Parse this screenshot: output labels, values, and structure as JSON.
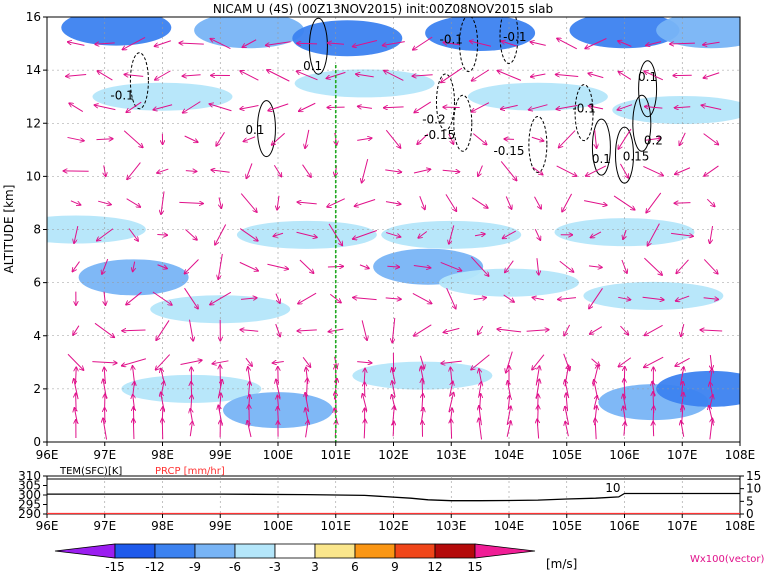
{
  "chart_data": [
    {
      "type": "heatmap",
      "title": "NICAM U (4S) (00Z13NOV2015) init:00Z08NOV2015 slab",
      "ylabel": "ALTITUDE [km]",
      "x_ticks": [
        "96E",
        "97E",
        "98E",
        "99E",
        "100E",
        "101E",
        "102E",
        "103E",
        "104E",
        "105E",
        "106E",
        "107E",
        "108E"
      ],
      "y_ticks": [
        "0",
        "2",
        "4",
        "6",
        "8",
        "10",
        "12",
        "14",
        "16"
      ],
      "xlim": [
        96,
        108
      ],
      "ylim": [
        0,
        16
      ],
      "grid": true,
      "marker_line_lon": 101,
      "shade_bands": [
        {
          "lon": 97.2,
          "z": 15.6,
          "level": -9
        },
        {
          "lon": 99.5,
          "z": 15.5,
          "level": -6
        },
        {
          "lon": 101.2,
          "z": 15.2,
          "level": -9
        },
        {
          "lon": 103.5,
          "z": 15.4,
          "level": -9
        },
        {
          "lon": 106.0,
          "z": 15.5,
          "level": -9
        },
        {
          "lon": 107.5,
          "z": 15.5,
          "level": -6
        },
        {
          "lon": 98.0,
          "z": 13.0,
          "level": -3
        },
        {
          "lon": 101.5,
          "z": 13.5,
          "level": -3
        },
        {
          "lon": 104.5,
          "z": 13.0,
          "level": -3
        },
        {
          "lon": 107.0,
          "z": 12.5,
          "level": -3
        },
        {
          "lon": 96.5,
          "z": 8.0,
          "level": -3
        },
        {
          "lon": 100.5,
          "z": 7.8,
          "level": -3
        },
        {
          "lon": 103.0,
          "z": 7.8,
          "level": -3
        },
        {
          "lon": 106.0,
          "z": 7.9,
          "level": -3
        },
        {
          "lon": 97.5,
          "z": 6.2,
          "level": -6
        },
        {
          "lon": 102.6,
          "z": 6.6,
          "level": -6
        },
        {
          "lon": 104.0,
          "z": 6.0,
          "level": -3
        },
        {
          "lon": 99.0,
          "z": 5.0,
          "level": -3
        },
        {
          "lon": 106.5,
          "z": 5.5,
          "level": -3
        },
        {
          "lon": 98.5,
          "z": 2.0,
          "level": -3
        },
        {
          "lon": 102.5,
          "z": 2.5,
          "level": -3
        },
        {
          "lon": 106.5,
          "z": 1.5,
          "level": -6
        },
        {
          "lon": 107.5,
          "z": 2.0,
          "level": -9
        },
        {
          "lon": 100.0,
          "z": 1.2,
          "level": -6
        }
      ],
      "contours": [
        {
          "lon": 97.6,
          "z": 13.6,
          "value": "-0.1",
          "style": "dashed"
        },
        {
          "lon": 99.8,
          "z": 11.8,
          "value": "0.1",
          "style": "solid"
        },
        {
          "lon": 100.7,
          "z": 14.9,
          "value": "0.1",
          "style": "solid"
        },
        {
          "lon": 103.3,
          "z": 15.0,
          "value": "-0.1",
          "style": "dashed"
        },
        {
          "lon": 104.0,
          "z": 15.3,
          "value": "-0.1",
          "style": "dashed"
        },
        {
          "lon": 102.9,
          "z": 12.8,
          "value": "-0.2",
          "style": "dashed"
        },
        {
          "lon": 103.2,
          "z": 12.0,
          "value": "-0.15",
          "style": "dashed"
        },
        {
          "lon": 104.5,
          "z": 11.2,
          "value": "-0.15",
          "style": "dashed"
        },
        {
          "lon": 105.3,
          "z": 12.4,
          "value": "-0.1",
          "style": "dashed"
        },
        {
          "lon": 106.4,
          "z": 13.3,
          "value": "0.1",
          "style": "solid"
        },
        {
          "lon": 106.3,
          "z": 12.0,
          "value": "0.2",
          "style": "solid"
        },
        {
          "lon": 106.0,
          "z": 10.8,
          "value": "0.15",
          "style": "solid"
        },
        {
          "lon": 105.6,
          "z": 11.1,
          "value": "0.1",
          "style": "solid"
        }
      ],
      "contour_labels": [
        {
          "text": "-0.1",
          "lon": 97.3,
          "z": 12.9
        },
        {
          "text": "0.1",
          "lon": 99.6,
          "z": 11.6
        },
        {
          "text": "0.1",
          "lon": 100.6,
          "z": 14.0
        },
        {
          "text": "-0.1",
          "lon": 103.0,
          "z": 15.0
        },
        {
          "text": "-0.1",
          "lon": 104.1,
          "z": 15.1
        },
        {
          "text": "-0.2",
          "lon": 102.7,
          "z": 12.0
        },
        {
          "text": "-0.15",
          "lon": 102.8,
          "z": 11.4
        },
        {
          "text": "-0.15",
          "lon": 104.0,
          "z": 10.8
        },
        {
          "text": "-0.1",
          "lon": 105.3,
          "z": 12.4
        },
        {
          "text": "0.1",
          "lon": 106.4,
          "z": 13.6
        },
        {
          "text": "0.2",
          "lon": 106.5,
          "z": 11.2
        },
        {
          "text": "0.15",
          "lon": 106.2,
          "z": 10.6
        },
        {
          "text": "0.1",
          "lon": 105.6,
          "z": 10.5
        }
      ],
      "vector_label": "Wx100(vector)"
    },
    {
      "type": "line",
      "left_axis_label": "TEM(SFC)[K]",
      "right_axis_label": "PRCP [mm/hr]",
      "left_ticks": [
        "310",
        "305",
        "300",
        "295",
        "290"
      ],
      "left_range": [
        290,
        310
      ],
      "right_ticks": [
        "15",
        "10",
        "5",
        "0"
      ],
      "right_range": [
        0,
        15
      ],
      "x_ticks": [
        "96E",
        "97E",
        "98E",
        "99E",
        "100E",
        "101E",
        "102E",
        "103E",
        "104E",
        "105E",
        "106E",
        "107E",
        "108E"
      ],
      "series": [
        {
          "name": "TEM(SFC)",
          "x": [
            96,
            99.0,
            100.5,
            101.5,
            102.3,
            102.6,
            103.0,
            103.5,
            104.0,
            104.5,
            105.0,
            105.5,
            105.9,
            106.0,
            108
          ],
          "y": [
            300.5,
            300.5,
            300.2,
            299.8,
            298.3,
            297.5,
            297.0,
            297.0,
            297.1,
            297.3,
            297.9,
            298.3,
            299.0,
            300.8,
            300.8
          ]
        },
        {
          "name": "PRCP",
          "x": [
            96,
            108
          ],
          "y": [
            0,
            0
          ]
        }
      ],
      "annotations": [
        {
          "text": "10",
          "lon": 105.8
        }
      ]
    },
    {
      "type": "colorbar",
      "levels": [
        "-15",
        "-12",
        "-9",
        "-6",
        "-3",
        "3",
        "6",
        "9",
        "12",
        "15"
      ],
      "colors": [
        "#9b1ef0",
        "#1e5aeb",
        "#3c82f0",
        "#78b4f5",
        "#b4e6fa",
        "#ffffff",
        "#fae68c",
        "#fa9614",
        "#f04619",
        "#b40a0a",
        "#f01e96"
      ],
      "unit": "[m/s]"
    }
  ]
}
